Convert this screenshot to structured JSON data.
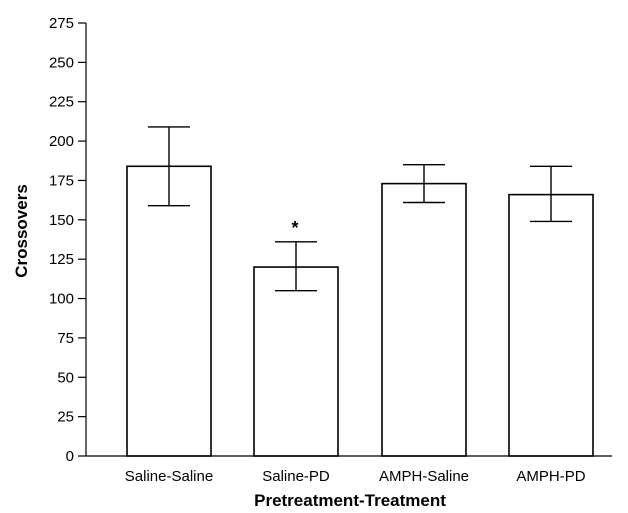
{
  "chart_data": {
    "type": "bar",
    "title": "",
    "xlabel": "Pretreatment-Treatment",
    "ylabel": "Crossovers",
    "ylim": [
      0,
      275
    ],
    "yticks": [
      0,
      25,
      50,
      75,
      100,
      125,
      150,
      175,
      200,
      225,
      250,
      275
    ],
    "categories": [
      "Saline-Saline",
      "Saline-PD",
      "AMPH-Saline",
      "AMPH-PD"
    ],
    "values": [
      184,
      120,
      173,
      166
    ],
    "error_low": [
      159,
      105,
      161,
      149
    ],
    "error_high": [
      209,
      136,
      185,
      184
    ],
    "annotations": [
      {
        "category": "Saline-PD",
        "text": "*"
      }
    ],
    "grid": false,
    "legend": "none",
    "bar_fill": "#ffffff",
    "stroke_color": "#000000"
  }
}
